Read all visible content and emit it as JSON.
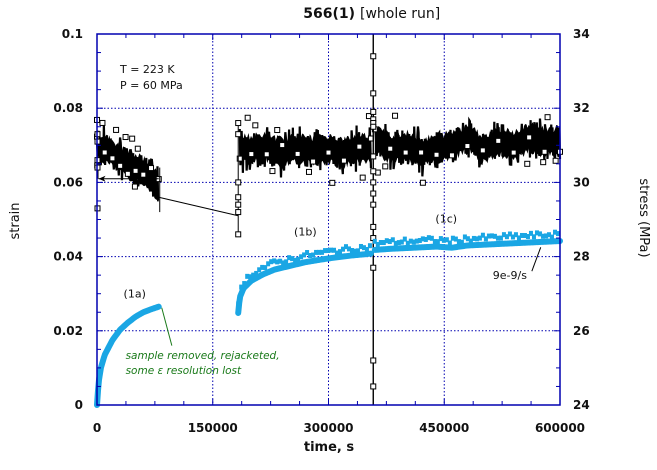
{
  "chart_data": {
    "type": "scatter",
    "title": "566(1)",
    "subtitle": "[whole run]",
    "xlabel": "time, s",
    "ylabel": "strain",
    "y2label": "stress (MPa)",
    "xlim": [
      0,
      600000
    ],
    "ylim": [
      0,
      0.1
    ],
    "y2lim": [
      24,
      34
    ],
    "xticks": [
      0,
      150000,
      300000,
      450000,
      600000
    ],
    "xtick_labels": [
      "0",
      "150000",
      "300000",
      "450000",
      "600000"
    ],
    "yticks": [
      0,
      0.02,
      0.04,
      0.06,
      0.08,
      0.1
    ],
    "ytick_labels": [
      "0",
      "0.02",
      "0.04",
      "0.06",
      "0.08",
      "0.1"
    ],
    "y2ticks": [
      24,
      26,
      28,
      30,
      32,
      34
    ],
    "y2tick_labels": [
      "24",
      "26",
      "28",
      "30",
      "32",
      "34"
    ],
    "grid": true,
    "colors": {
      "axis": "#0000b0",
      "grid": "#0000b0",
      "strain": "#1aa6e4",
      "stress": "#000000",
      "annotation_green": "#1a7a1a"
    },
    "conditions": [
      "T = 223 K",
      "P = 60 MPa"
    ],
    "series": [
      {
        "name": "strain",
        "axis": "left",
        "segments": [
          {
            "label": "(1a)",
            "x": [
              0,
              2000,
              5000,
              10000,
              20000,
              30000,
              40000,
              50000,
              60000,
              70000,
              80000
            ],
            "y": [
              0.0,
              0.006,
              0.01,
              0.0135,
              0.0175,
              0.0203,
              0.0222,
              0.0238,
              0.025,
              0.0258,
              0.0265
            ]
          },
          {
            "label": "(1b)",
            "x": [
              183000,
              185000,
              190000,
              200000,
              215000,
              230000,
              250000,
              270000,
              290000,
              310000,
              330000,
              355000
            ],
            "y": [
              0.0248,
              0.029,
              0.0315,
              0.0335,
              0.0352,
              0.0365,
              0.0375,
              0.0385,
              0.0392,
              0.0398,
              0.0403,
              0.0408
            ]
          },
          {
            "label": "(1c)",
            "x": [
              360000,
              380000,
              400000,
              420000,
              440000,
              460000,
              480000,
              500000,
              520000,
              540000,
              560000,
              580000,
              600000
            ],
            "y": [
              0.0418,
              0.0421,
              0.0423,
              0.0425,
              0.0427,
              0.0424,
              0.043,
              0.0432,
              0.0434,
              0.0436,
              0.0438,
              0.044,
              0.0442
            ]
          }
        ]
      },
      {
        "name": "stress",
        "axis": "right",
        "segments": [
          {
            "x": [
              0,
              10000,
              20000,
              30000,
              40000,
              50000,
              60000,
              70000,
              80000
            ],
            "y": [
              31.0,
              30.9,
              30.8,
              30.6,
              30.5,
              30.4,
              30.3,
              30.1,
              29.9
            ]
          },
          {
            "x": [
              185000,
              200000,
              220000,
              240000,
              260000,
              280000,
              300000,
              320000,
              340000,
              355000
            ],
            "y": [
              30.9,
              30.9,
              30.95,
              30.8,
              30.9,
              30.85,
              30.9,
              30.8,
              30.95,
              30.9
            ]
          },
          {
            "x": [
              360000,
              380000,
              400000,
              420000,
              440000,
              460000,
              480000,
              500000,
              520000,
              540000,
              560000,
              580000,
              600000
            ],
            "y": [
              31.2,
              30.9,
              31.0,
              30.8,
              30.9,
              31.0,
              31.2,
              30.9,
              31.1,
              31.0,
              31.2,
              31.1,
              31.1
            ]
          }
        ]
      }
    ],
    "annotations": [
      {
        "text": "(1a)",
        "x": 45000,
        "y": 0.03
      },
      {
        "text": "(1b)",
        "x": 270000,
        "y": 0.046
      },
      {
        "text": "(1c)",
        "x": 450000,
        "y": 0.05
      },
      {
        "text": "9e-9/s",
        "x": 535000,
        "y": 0.035
      },
      {
        "text": "sample removed, rejacketed,",
        "x": 50000,
        "y": 0.0135
      },
      {
        "text": "some ε resolution lost",
        "x": 50000,
        "y": 0.0095
      }
    ]
  }
}
